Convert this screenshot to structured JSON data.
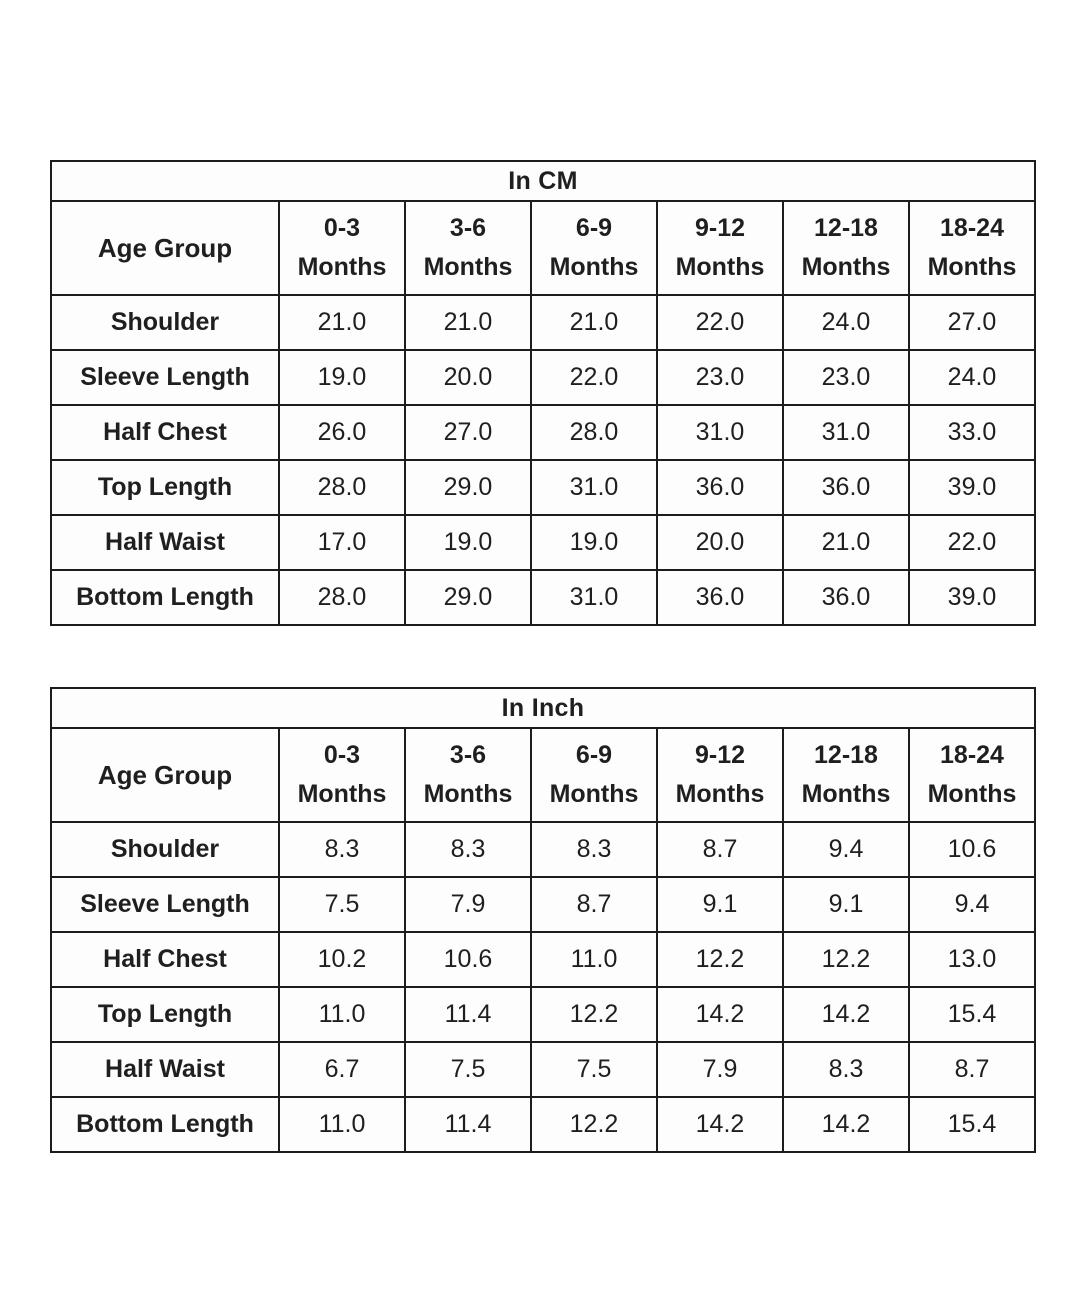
{
  "page": {
    "background": "#ffffff",
    "border_color": "#1c1c1c",
    "header_text_color": "#1f1f1f",
    "value_text_color": "#3a3a3a"
  },
  "tables": [
    {
      "title": "In CM",
      "age_group_label": "Age Group",
      "column_unit": "Months",
      "columns": [
        "0-3",
        "3-6",
        "6-9",
        "9-12",
        "12-18",
        "18-24"
      ],
      "rows": [
        {
          "label": "Shoulder",
          "values": [
            "21.0",
            "21.0",
            "21.0",
            "22.0",
            "24.0",
            "27.0"
          ]
        },
        {
          "label": "Sleeve Length",
          "values": [
            "19.0",
            "20.0",
            "22.0",
            "23.0",
            "23.0",
            "24.0"
          ]
        },
        {
          "label": "Half Chest",
          "values": [
            "26.0",
            "27.0",
            "28.0",
            "31.0",
            "31.0",
            "33.0"
          ]
        },
        {
          "label": "Top Length",
          "values": [
            "28.0",
            "29.0",
            "31.0",
            "36.0",
            "36.0",
            "39.0"
          ]
        },
        {
          "label": "Half Waist",
          "values": [
            "17.0",
            "19.0",
            "19.0",
            "20.0",
            "21.0",
            "22.0"
          ]
        },
        {
          "label": "Bottom Length",
          "values": [
            "28.0",
            "29.0",
            "31.0",
            "36.0",
            "36.0",
            "39.0"
          ]
        }
      ]
    },
    {
      "title": "In Inch",
      "age_group_label": "Age Group",
      "column_unit": "Months",
      "columns": [
        "0-3",
        "3-6",
        "6-9",
        "9-12",
        "12-18",
        "18-24"
      ],
      "rows": [
        {
          "label": "Shoulder",
          "values": [
            "8.3",
            "8.3",
            "8.3",
            "8.7",
            "9.4",
            "10.6"
          ]
        },
        {
          "label": "Sleeve Length",
          "values": [
            "7.5",
            "7.9",
            "8.7",
            "9.1",
            "9.1",
            "9.4"
          ]
        },
        {
          "label": "Half Chest",
          "values": [
            "10.2",
            "10.6",
            "11.0",
            "12.2",
            "12.2",
            "13.0"
          ]
        },
        {
          "label": "Top Length",
          "values": [
            "11.0",
            "11.4",
            "12.2",
            "14.2",
            "14.2",
            "15.4"
          ]
        },
        {
          "label": "Half Waist",
          "values": [
            "6.7",
            "7.5",
            "7.5",
            "7.9",
            "8.3",
            "8.7"
          ]
        },
        {
          "label": "Bottom Length",
          "values": [
            "11.0",
            "11.4",
            "12.2",
            "14.2",
            "14.2",
            "15.4"
          ]
        }
      ]
    }
  ],
  "chart_data": [
    {
      "type": "table",
      "title": "In CM",
      "categories": [
        "0-3 Months",
        "3-6 Months",
        "6-9 Months",
        "9-12 Months",
        "12-18 Months",
        "18-24 Months"
      ],
      "series": [
        {
          "name": "Shoulder",
          "values": [
            21.0,
            21.0,
            21.0,
            22.0,
            24.0,
            27.0
          ]
        },
        {
          "name": "Sleeve Length",
          "values": [
            19.0,
            20.0,
            22.0,
            23.0,
            23.0,
            24.0
          ]
        },
        {
          "name": "Half Chest",
          "values": [
            26.0,
            27.0,
            28.0,
            31.0,
            31.0,
            33.0
          ]
        },
        {
          "name": "Top Length",
          "values": [
            28.0,
            29.0,
            31.0,
            36.0,
            36.0,
            39.0
          ]
        },
        {
          "name": "Half Waist",
          "values": [
            17.0,
            19.0,
            19.0,
            20.0,
            21.0,
            22.0
          ]
        },
        {
          "name": "Bottom Length",
          "values": [
            28.0,
            29.0,
            31.0,
            36.0,
            36.0,
            39.0
          ]
        }
      ]
    },
    {
      "type": "table",
      "title": "In Inch",
      "categories": [
        "0-3 Months",
        "3-6 Months",
        "6-9 Months",
        "9-12 Months",
        "12-18 Months",
        "18-24 Months"
      ],
      "series": [
        {
          "name": "Shoulder",
          "values": [
            8.3,
            8.3,
            8.3,
            8.7,
            9.4,
            10.6
          ]
        },
        {
          "name": "Sleeve Length",
          "values": [
            7.5,
            7.9,
            8.7,
            9.1,
            9.1,
            9.4
          ]
        },
        {
          "name": "Half Chest",
          "values": [
            10.2,
            10.6,
            11.0,
            12.2,
            12.2,
            13.0
          ]
        },
        {
          "name": "Top Length",
          "values": [
            11.0,
            11.4,
            12.2,
            14.2,
            14.2,
            15.4
          ]
        },
        {
          "name": "Half Waist",
          "values": [
            6.7,
            7.5,
            7.5,
            7.9,
            8.3,
            8.7
          ]
        },
        {
          "name": "Bottom Length",
          "values": [
            11.0,
            11.4,
            12.2,
            14.2,
            14.2,
            15.4
          ]
        }
      ]
    }
  ]
}
